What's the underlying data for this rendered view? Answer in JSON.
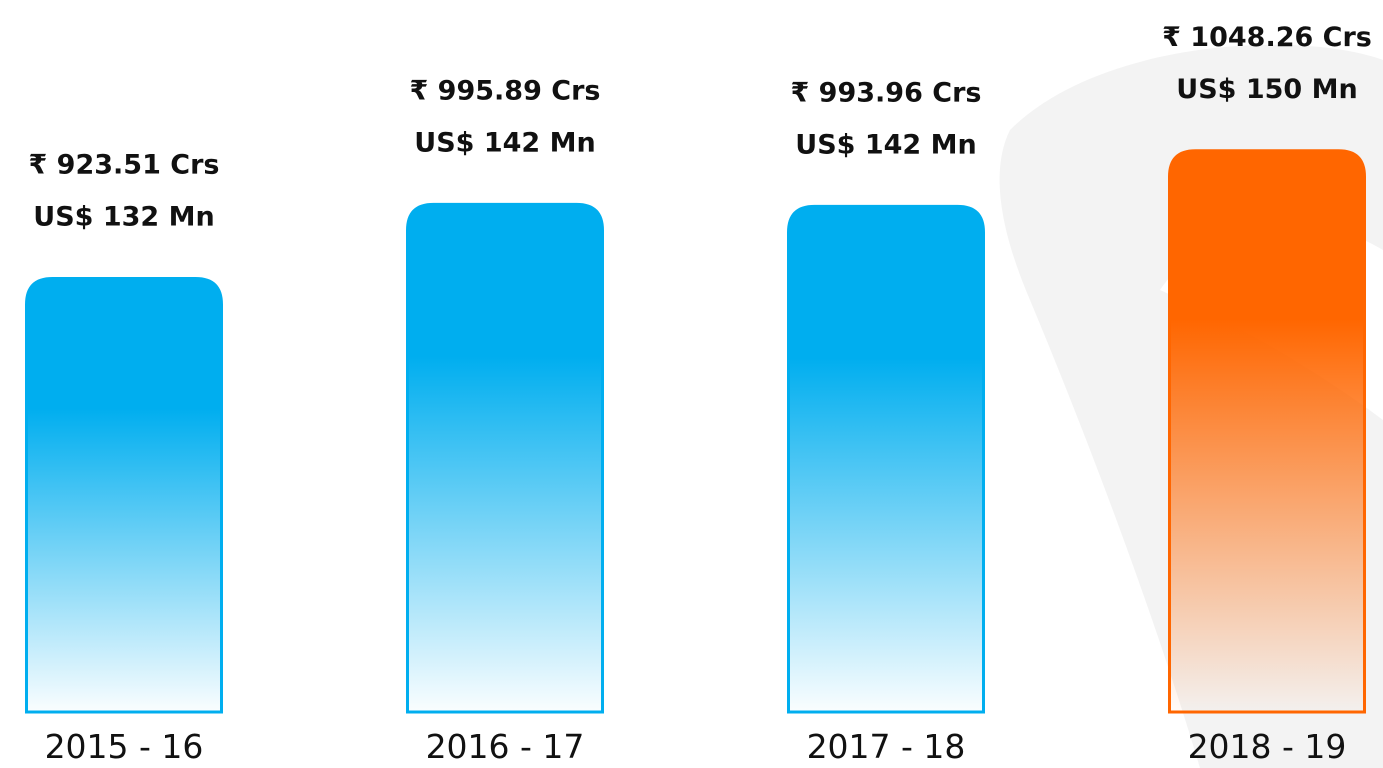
{
  "chart_data": {
    "type": "bar",
    "categories": [
      "2015 - 16",
      "2016 - 17",
      "2017 - 18",
      "2018 - 19"
    ],
    "values": [
      923.51,
      995.89,
      993.96,
      1048.26
    ],
    "value_labels": [
      "₹ 923.51 Crs",
      "₹ 995.89 Crs",
      "₹ 993.96 Crs",
      "₹ 1048.26 Crs"
    ],
    "values_usd": [
      132,
      142,
      142,
      150
    ],
    "value_labels_usd": [
      "US$ 132 Mn",
      "US$ 142 Mn",
      "US$ 142 Mn",
      "US$ 150 Mn"
    ],
    "colors": [
      "#00aeef",
      "#00aeef",
      "#00aeef",
      "#ff6600"
    ],
    "ylim": [
      500,
      1050
    ]
  }
}
